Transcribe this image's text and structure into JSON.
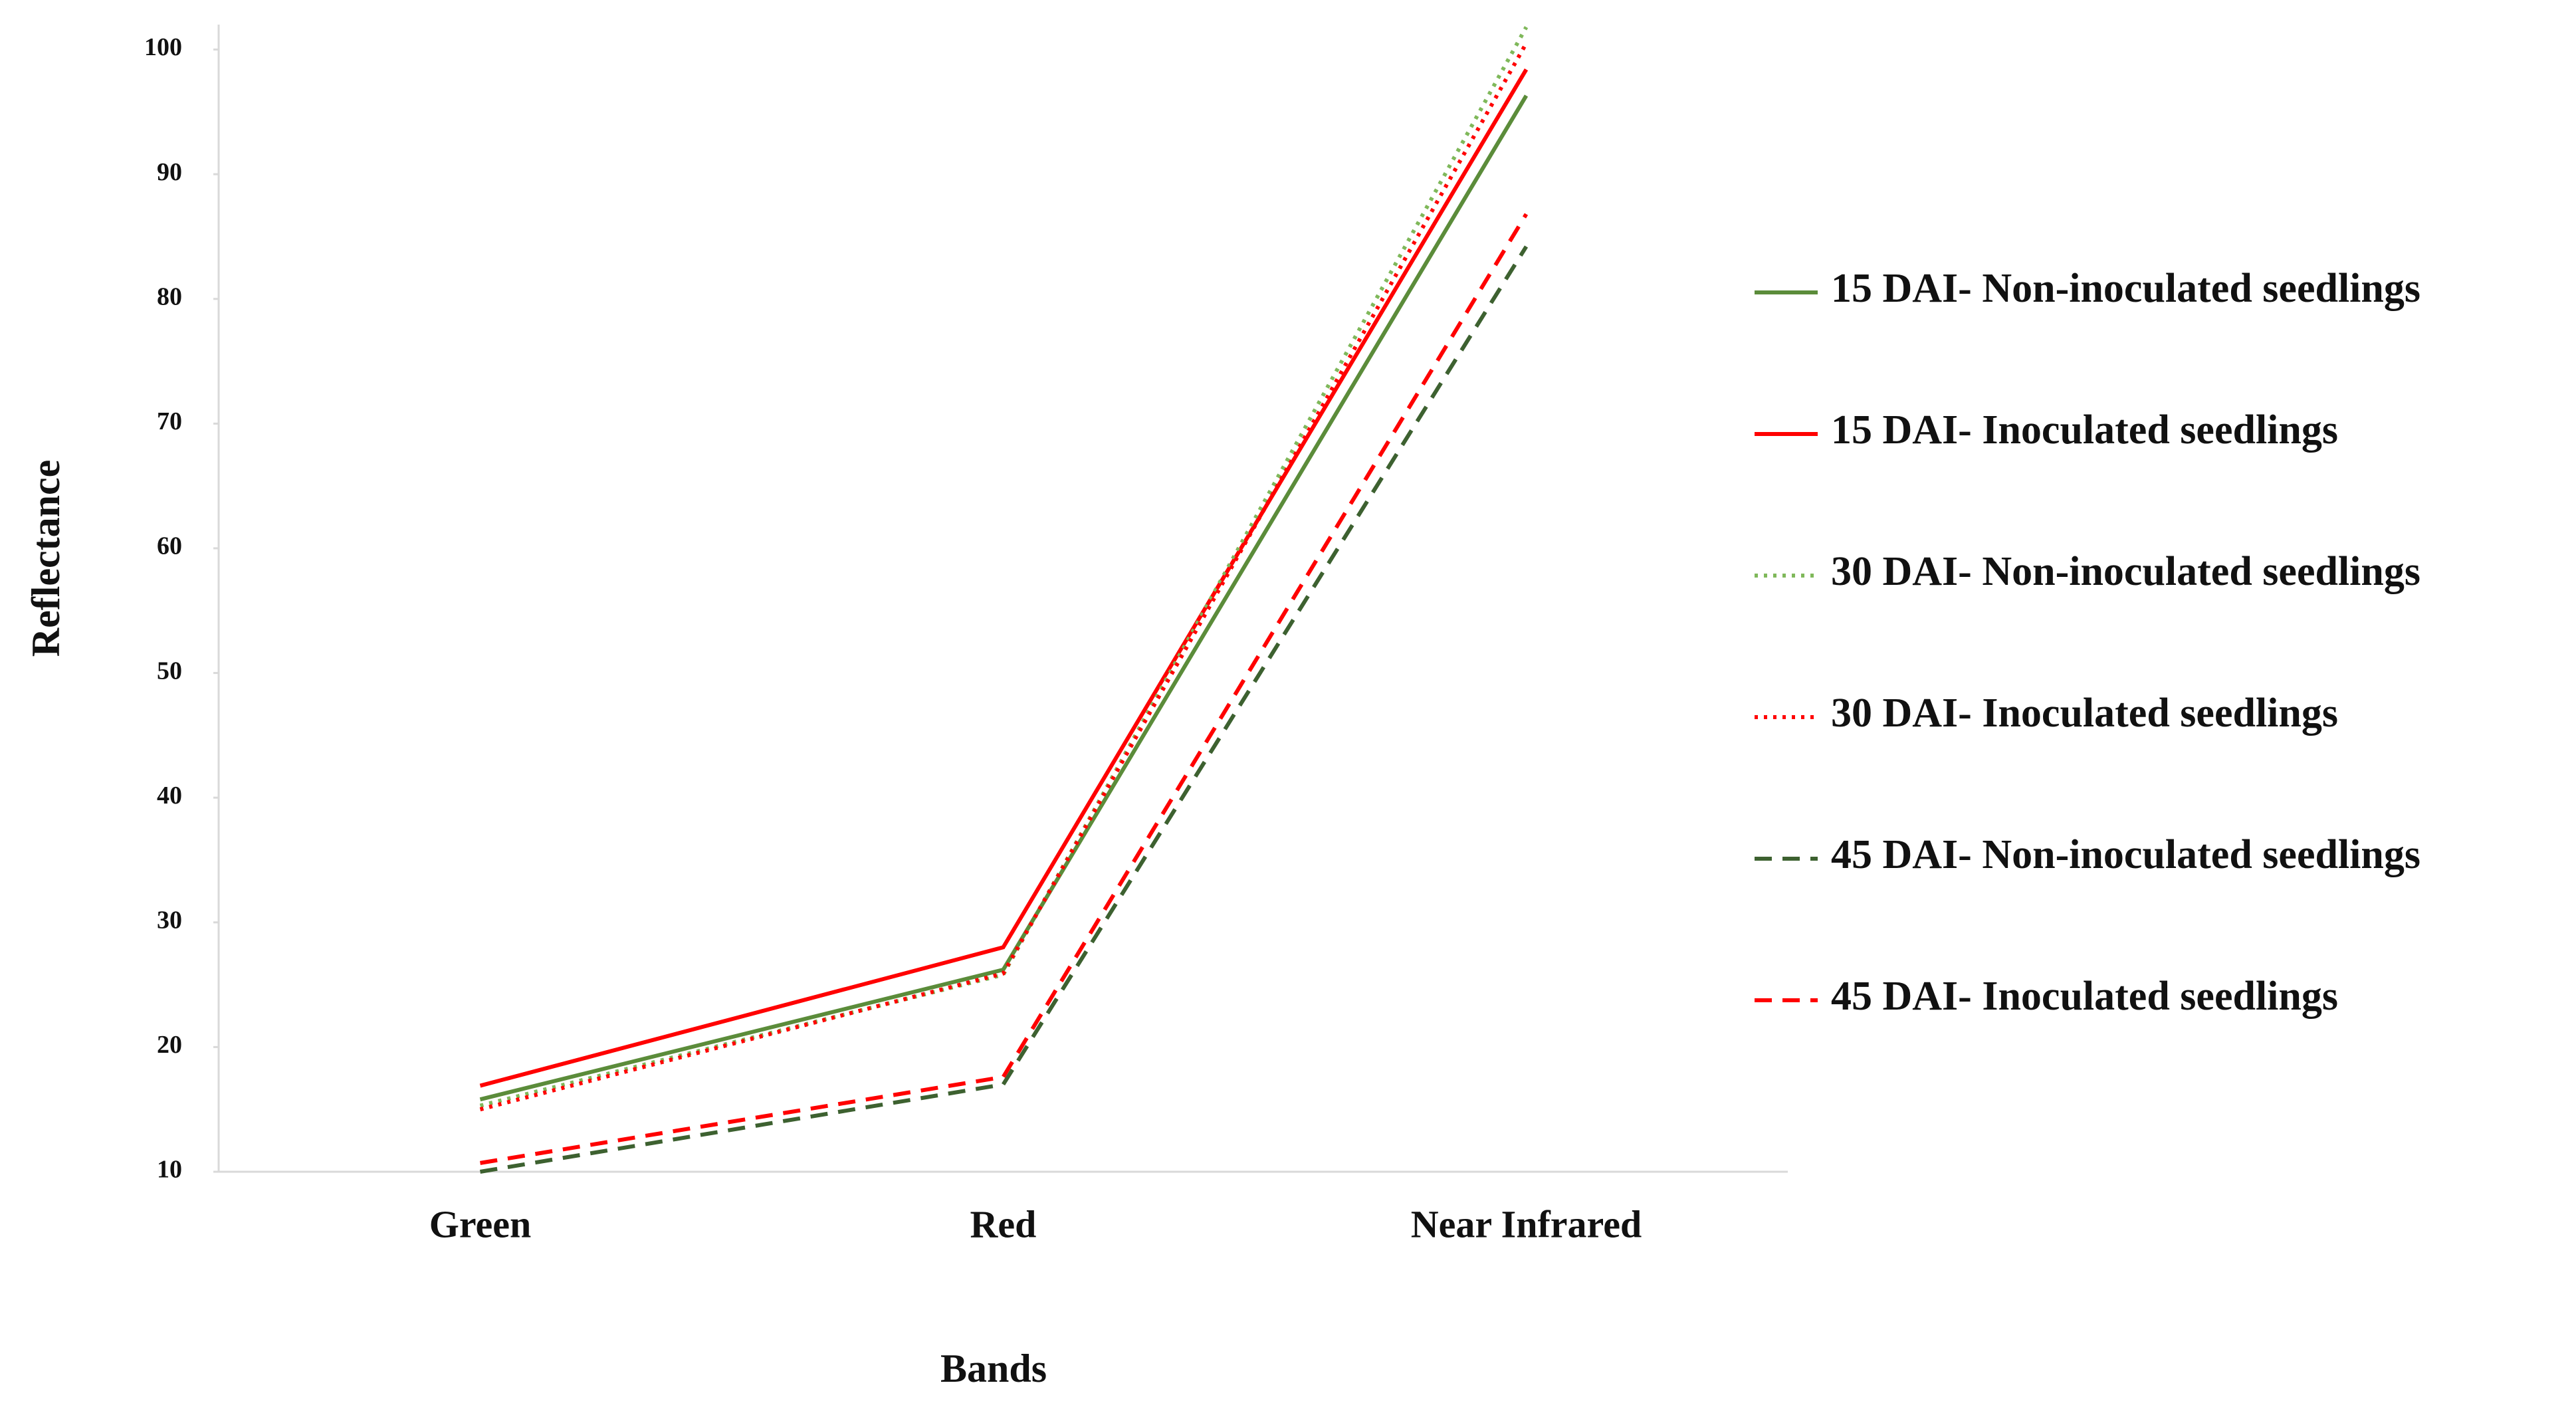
{
  "chart_data": {
    "type": "line",
    "x_label": "Bands",
    "y_label": "Reflectance",
    "categories": [
      "Green",
      "Red",
      "Near Infrared"
    ],
    "series": [
      {
        "name": "15 DAI- Non-inoculated seedlings",
        "color": "#5b8c3a",
        "style": "solid",
        "values": [
          15.8,
          26.2,
          96.3
        ]
      },
      {
        "name": "15 DAI- Inoculated seedlings",
        "color": "#ff0000",
        "style": "solid",
        "values": [
          16.9,
          28.0,
          98.4
        ]
      },
      {
        "name": "30 DAI- Non-inoculated seedlings",
        "color": "#7fb85a",
        "style": "dotted",
        "values": [
          15.3,
          25.8,
          101.8
        ]
      },
      {
        "name": "30 DAI- Inoculated seedlings",
        "color": "#ff0000",
        "style": "dotted",
        "values": [
          15.0,
          25.9,
          100.5
        ]
      },
      {
        "name": "45 DAI- Non-inoculated seedlings",
        "color": "#3d6130",
        "style": "dashed",
        "values": [
          10.0,
          17.0,
          84.2
        ]
      },
      {
        "name": "45 DAI- Inoculated seedlings",
        "color": "#ff0000",
        "style": "dashed",
        "values": [
          10.7,
          17.6,
          86.8
        ]
      }
    ],
    "ylim": [
      10,
      102
    ],
    "yticks": [
      10,
      20,
      30,
      40,
      50,
      60,
      70,
      80,
      90,
      100
    ],
    "grid": false,
    "legend": "right"
  }
}
